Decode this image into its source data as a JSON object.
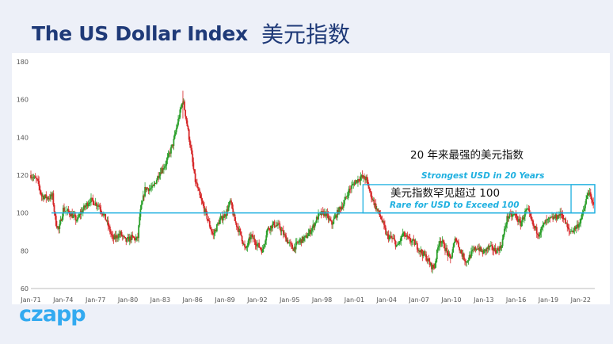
{
  "header": {
    "title": "The US Dollar Index",
    "title_cn": "美元指数"
  },
  "brand": {
    "logo_text": "czapp",
    "logo_color": "#33aaf0"
  },
  "colors": {
    "up": "#2ca02c",
    "down": "#d62728",
    "reference": "#1fb0e0",
    "annotation": "#1fb0e0",
    "title": "#1f3a78"
  },
  "chart_data": {
    "type": "candlestick",
    "title": "",
    "xlabel": "",
    "ylabel": "",
    "x_range": [
      1971.0,
      2023.3
    ],
    "ylim": [
      60,
      180
    ],
    "yticks": [
      60,
      80,
      100,
      120,
      140,
      160,
      180
    ],
    "xticks": [
      {
        "label": "Jan-71",
        "x": 1971
      },
      {
        "label": "Jan-74",
        "x": 1974
      },
      {
        "label": "Jan-77",
        "x": 1977
      },
      {
        "label": "Jan-80",
        "x": 1980
      },
      {
        "label": "Jan-83",
        "x": 1983
      },
      {
        "label": "Jan-86",
        "x": 1986
      },
      {
        "label": "Jan-89",
        "x": 1989
      },
      {
        "label": "Jan-92",
        "x": 1992
      },
      {
        "label": "Jan-95",
        "x": 1995
      },
      {
        "label": "Jan-98",
        "x": 1998
      },
      {
        "label": "Jan-01",
        "x": 2001
      },
      {
        "label": "Jan-04",
        "x": 2004
      },
      {
        "label": "Jan-07",
        "x": 2007
      },
      {
        "label": "Jan-10",
        "x": 2010
      },
      {
        "label": "Jan-13",
        "x": 2013
      },
      {
        "label": "Jan-16",
        "x": 2016
      },
      {
        "label": "Jan-19",
        "x": 2019
      },
      {
        "label": "Jan-22",
        "x": 2022
      }
    ],
    "grid": false,
    "series": [
      {
        "close_path": [
          [
            1971.0,
            120
          ],
          [
            1971.6,
            117
          ],
          [
            1972.0,
            109
          ],
          [
            1972.6,
            108
          ],
          [
            1973.0,
            109
          ],
          [
            1973.3,
            95
          ],
          [
            1973.6,
            91
          ],
          [
            1974.0,
            102
          ],
          [
            1974.6,
            100
          ],
          [
            1975.3,
            96
          ],
          [
            1975.6,
            100
          ],
          [
            1976.5,
            107
          ],
          [
            1977.3,
            104
          ],
          [
            1978.0,
            96
          ],
          [
            1978.6,
            86
          ],
          [
            1979.3,
            89
          ],
          [
            1979.8,
            85
          ],
          [
            1980.3,
            87
          ],
          [
            1980.9,
            86
          ],
          [
            1981.1,
            99
          ],
          [
            1981.6,
            113
          ],
          [
            1982.3,
            113
          ],
          [
            1982.9,
            121
          ],
          [
            1983.5,
            126
          ],
          [
            1984.2,
            137
          ],
          [
            1984.7,
            150
          ],
          [
            1985.1,
            160
          ],
          [
            1985.4,
            150
          ],
          [
            1985.8,
            135
          ],
          [
            1986.2,
            118
          ],
          [
            1986.7,
            108
          ],
          [
            1987.2,
            100
          ],
          [
            1987.9,
            88
          ],
          [
            1988.4,
            95
          ],
          [
            1989.1,
            100
          ],
          [
            1989.5,
            106
          ],
          [
            1989.9,
            96
          ],
          [
            1990.5,
            88
          ],
          [
            1990.9,
            80
          ],
          [
            1991.4,
            88
          ],
          [
            1991.9,
            84
          ],
          [
            1992.5,
            80
          ],
          [
            1992.9,
            91
          ],
          [
            1993.5,
            94
          ],
          [
            1994.0,
            93
          ],
          [
            1994.6,
            87
          ],
          [
            1995.3,
            81
          ],
          [
            1995.9,
            85
          ],
          [
            1996.5,
            87
          ],
          [
            1997.1,
            92
          ],
          [
            1997.7,
            99
          ],
          [
            1998.3,
            100
          ],
          [
            1998.9,
            94
          ],
          [
            1999.5,
            101
          ],
          [
            2000.0,
            105
          ],
          [
            2000.5,
            112
          ],
          [
            2001.0,
            116
          ],
          [
            2001.6,
            119
          ],
          [
            2002.1,
            118
          ],
          [
            2002.5,
            110
          ],
          [
            2003.0,
            103
          ],
          [
            2003.5,
            97
          ],
          [
            2004.0,
            88
          ],
          [
            2004.6,
            86
          ],
          [
            2005.0,
            82
          ],
          [
            2005.5,
            89
          ],
          [
            2006.0,
            86
          ],
          [
            2006.6,
            84
          ],
          [
            2007.1,
            80
          ],
          [
            2007.6,
            77
          ],
          [
            2008.1,
            72
          ],
          [
            2008.4,
            71
          ],
          [
            2008.9,
            86
          ],
          [
            2009.3,
            83
          ],
          [
            2009.9,
            75
          ],
          [
            2010.4,
            87
          ],
          [
            2010.9,
            79
          ],
          [
            2011.4,
            74
          ],
          [
            2011.9,
            79
          ],
          [
            2012.4,
            82
          ],
          [
            2012.9,
            79
          ],
          [
            2013.5,
            82
          ],
          [
            2014.1,
            80
          ],
          [
            2014.6,
            82
          ],
          [
            2014.9,
            90
          ],
          [
            2015.2,
            98
          ],
          [
            2015.9,
            99
          ],
          [
            2016.4,
            94
          ],
          [
            2016.9,
            101
          ],
          [
            2017.1,
            101
          ],
          [
            2017.6,
            93
          ],
          [
            2018.1,
            89
          ],
          [
            2018.7,
            95
          ],
          [
            2019.3,
            97
          ],
          [
            2019.8,
            98
          ],
          [
            2020.2,
            100
          ],
          [
            2020.5,
            96
          ],
          [
            2020.9,
            90
          ],
          [
            2021.3,
            91
          ],
          [
            2021.8,
            94
          ],
          [
            2022.1,
            98
          ],
          [
            2022.4,
            104
          ],
          [
            2022.7,
            112
          ],
          [
            2022.9,
            108
          ],
          [
            2023.2,
            103
          ]
        ]
      }
    ],
    "reference_line": {
      "y": 100
    },
    "annotations": [
      {
        "id": "strongest",
        "text": "20 年来最强的美元指数",
        "style": "black"
      },
      {
        "id": "strongest_en",
        "text": "Strongest USD in 20 Years",
        "style": "blue-italic"
      },
      {
        "id": "rare",
        "text": "美元指数罕见超过 100",
        "style": "black"
      },
      {
        "id": "rare_en",
        "text": "Rare for USD to Exceed 100",
        "style": "blue-italic"
      }
    ],
    "highlight_box": {
      "x": [
        2001.8,
        2023.3
      ],
      "y": [
        100,
        115
      ]
    },
    "inner_box": {
      "x": [
        2021.1,
        2023.3
      ],
      "y": [
        100,
        115
      ]
    }
  }
}
